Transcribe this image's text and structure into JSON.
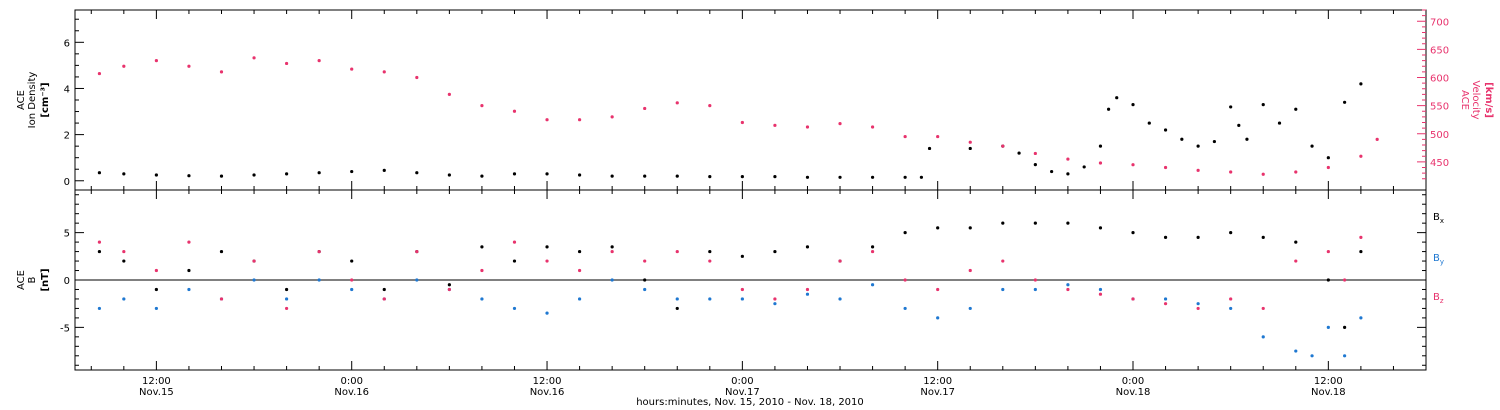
{
  "chart_data": [
    {
      "type": "scatter",
      "panel": "top",
      "ylabel_left": [
        "ACE",
        "Ion Density"
      ],
      "ylabel_left_unit": "[cm⁻³]",
      "ylabel_right": [
        "ACE",
        "Velocity"
      ],
      "ylabel_right_unit": "[km/s]",
      "left_axis": {
        "range": [
          -0.4,
          7.4
        ],
        "ticks": [
          0,
          2,
          4,
          6
        ],
        "tick_labels": [
          "0",
          "2",
          "4",
          "6"
        ]
      },
      "right_axis": {
        "range": [
          400,
          720
        ],
        "ticks": [
          450,
          500,
          550,
          600,
          650,
          700
        ],
        "tick_labels": [
          "450",
          "500",
          "550",
          "600",
          "650",
          "700"
        ],
        "color": "#e8336d"
      },
      "series": [
        {
          "axis": "left",
          "color": "#000000",
          "points": [
            [
              8.5,
              0.35
            ],
            [
              10,
              0.3
            ],
            [
              12,
              0.25
            ],
            [
              14,
              0.22
            ],
            [
              16,
              0.2
            ],
            [
              18,
              0.25
            ],
            [
              20,
              0.3
            ],
            [
              22,
              0.35
            ],
            [
              24,
              0.4
            ],
            [
              26,
              0.45
            ],
            [
              28,
              0.35
            ],
            [
              30,
              0.25
            ],
            [
              32,
              0.2
            ],
            [
              34,
              0.3
            ],
            [
              36,
              0.3
            ],
            [
              38,
              0.25
            ],
            [
              40,
              0.2
            ],
            [
              42,
              0.2
            ],
            [
              44,
              0.2
            ],
            [
              46,
              0.18
            ],
            [
              48,
              0.18
            ],
            [
              50,
              0.18
            ],
            [
              52,
              0.15
            ],
            [
              54,
              0.15
            ],
            [
              56,
              0.15
            ],
            [
              58,
              0.15
            ],
            [
              59,
              0.15
            ],
            [
              59.5,
              1.4
            ],
            [
              62,
              1.4
            ],
            [
              64,
              1.5
            ],
            [
              65,
              1.2
            ],
            [
              66,
              0.7
            ],
            [
              67,
              0.4
            ],
            [
              68,
              0.3
            ],
            [
              69,
              0.6
            ],
            [
              70,
              1.5
            ],
            [
              70.5,
              3.1
            ],
            [
              71,
              3.6
            ],
            [
              72,
              3.3
            ],
            [
              73,
              2.5
            ],
            [
              74,
              2.2
            ],
            [
              75,
              1.8
            ],
            [
              76,
              1.5
            ],
            [
              77,
              1.7
            ],
            [
              78,
              3.2
            ],
            [
              78.5,
              2.4
            ],
            [
              79,
              1.8
            ],
            [
              80,
              3.3
            ],
            [
              81,
              2.5
            ],
            [
              82,
              3.1
            ],
            [
              83,
              1.5
            ],
            [
              84,
              1.0
            ],
            [
              85,
              3.4
            ],
            [
              86,
              4.2
            ]
          ]
        },
        {
          "axis": "right",
          "color": "#e8336d",
          "points": [
            [
              8.5,
              607
            ],
            [
              10,
              620
            ],
            [
              12,
              630
            ],
            [
              14,
              620
            ],
            [
              16,
              610
            ],
            [
              18,
              635
            ],
            [
              20,
              625
            ],
            [
              22,
              630
            ],
            [
              24,
              615
            ],
            [
              26,
              610
            ],
            [
              28,
              600
            ],
            [
              30,
              570
            ],
            [
              32,
              550
            ],
            [
              34,
              540
            ],
            [
              36,
              525
            ],
            [
              38,
              525
            ],
            [
              40,
              530
            ],
            [
              42,
              545
            ],
            [
              44,
              555
            ],
            [
              46,
              550
            ],
            [
              48,
              520
            ],
            [
              50,
              515
            ],
            [
              52,
              512
            ],
            [
              54,
              518
            ],
            [
              56,
              512
            ],
            [
              58,
              495
            ],
            [
              60,
              495
            ],
            [
              62,
              485
            ],
            [
              64,
              478
            ],
            [
              66,
              465
            ],
            [
              68,
              455
            ],
            [
              70,
              448
            ],
            [
              72,
              445
            ],
            [
              74,
              440
            ],
            [
              76,
              435
            ],
            [
              78,
              432
            ],
            [
              80,
              428
            ],
            [
              82,
              432
            ],
            [
              84,
              440
            ],
            [
              86,
              460
            ],
            [
              87,
              490
            ]
          ]
        }
      ]
    },
    {
      "type": "scatter",
      "panel": "bottom",
      "ylabel_left": [
        "ACE",
        "B"
      ],
      "ylabel_left_unit": "[nT]",
      "left_axis": {
        "range": [
          -9.5,
          9.5
        ],
        "ticks": [
          -5,
          0,
          5
        ],
        "tick_labels": [
          "-5",
          "0",
          "5"
        ]
      },
      "zero_line": true,
      "x_axis": {
        "range": [
          7,
          90
        ],
        "major_ticks": [
          12,
          24,
          36,
          48,
          60,
          72,
          84
        ],
        "tick_labels": [
          {
            "time": "12:00",
            "date": "Nov.15"
          },
          {
            "time": "0:00",
            "date": "Nov.16"
          },
          {
            "time": "12:00",
            "date": "Nov.16"
          },
          {
            "time": "0:00",
            "date": "Nov.17"
          },
          {
            "time": "12:00",
            "date": "Nov.17"
          },
          {
            "time": "0:00",
            "date": "Nov.18"
          },
          {
            "time": "12:00",
            "date": "Nov.18"
          }
        ],
        "xlabel": "hours:minutes, Nov. 15, 2010 - Nov. 18, 2010"
      },
      "series": [
        {
          "name": "Bx",
          "color": "#000000",
          "points": [
            [
              8.5,
              3
            ],
            [
              10,
              2
            ],
            [
              12,
              -1
            ],
            [
              14,
              1
            ],
            [
              16,
              3
            ],
            [
              18,
              2
            ],
            [
              20,
              -1
            ],
            [
              22,
              3
            ],
            [
              24,
              2
            ],
            [
              26,
              -1
            ],
            [
              28,
              3
            ],
            [
              30,
              -0.5
            ],
            [
              32,
              3.5
            ],
            [
              34,
              2
            ],
            [
              36,
              3.5
            ],
            [
              38,
              3
            ],
            [
              40,
              3.5
            ],
            [
              42,
              0
            ],
            [
              44,
              -3
            ],
            [
              46,
              3
            ],
            [
              48,
              2.5
            ],
            [
              50,
              3
            ],
            [
              52,
              3.5
            ],
            [
              54,
              2
            ],
            [
              56,
              3.5
            ],
            [
              58,
              5
            ],
            [
              60,
              5.5
            ],
            [
              62,
              5.5
            ],
            [
              64,
              6
            ],
            [
              66,
              6
            ],
            [
              68,
              6
            ],
            [
              70,
              5.5
            ],
            [
              72,
              5
            ],
            [
              74,
              4.5
            ],
            [
              76,
              4.5
            ],
            [
              78,
              5
            ],
            [
              80,
              4.5
            ],
            [
              82,
              4
            ],
            [
              84,
              0
            ],
            [
              85,
              -5
            ],
            [
              86,
              3
            ]
          ]
        },
        {
          "name": "By",
          "color": "#1f78d1",
          "points": [
            [
              8.5,
              -3
            ],
            [
              10,
              -2
            ],
            [
              12,
              -3
            ],
            [
              14,
              -1
            ],
            [
              16,
              -2
            ],
            [
              18,
              0
            ],
            [
              20,
              -2
            ],
            [
              22,
              0
            ],
            [
              24,
              -1
            ],
            [
              26,
              -2
            ],
            [
              28,
              0
            ],
            [
              30,
              -1
            ],
            [
              32,
              -2
            ],
            [
              34,
              -3
            ],
            [
              36,
              -3.5
            ],
            [
              38,
              -2
            ],
            [
              40,
              0
            ],
            [
              42,
              -1
            ],
            [
              44,
              -2
            ],
            [
              46,
              -2
            ],
            [
              48,
              -2
            ],
            [
              50,
              -2.5
            ],
            [
              52,
              -1.5
            ],
            [
              54,
              -2
            ],
            [
              56,
              -0.5
            ],
            [
              58,
              -3
            ],
            [
              60,
              -4
            ],
            [
              62,
              -3
            ],
            [
              64,
              -1
            ],
            [
              66,
              -1
            ],
            [
              68,
              -0.5
            ],
            [
              70,
              -1
            ],
            [
              72,
              -2
            ],
            [
              74,
              -2
            ],
            [
              76,
              -2.5
            ],
            [
              78,
              -3
            ],
            [
              80,
              -6
            ],
            [
              82,
              -7.5
            ],
            [
              83,
              -8
            ],
            [
              84,
              -5
            ],
            [
              85,
              -8
            ],
            [
              86,
              -4
            ]
          ]
        },
        {
          "name": "Bz",
          "color": "#e8336d",
          "points": [
            [
              8.5,
              4
            ],
            [
              10,
              3
            ],
            [
              12,
              1
            ],
            [
              14,
              4
            ],
            [
              16,
              -2
            ],
            [
              18,
              2
            ],
            [
              20,
              -3
            ],
            [
              22,
              3
            ],
            [
              24,
              0
            ],
            [
              26,
              -2
            ],
            [
              28,
              3
            ],
            [
              30,
              -1
            ],
            [
              32,
              1
            ],
            [
              34,
              4
            ],
            [
              36,
              2
            ],
            [
              38,
              1
            ],
            [
              40,
              3
            ],
            [
              42,
              2
            ],
            [
              44,
              3
            ],
            [
              46,
              2
            ],
            [
              48,
              -1
            ],
            [
              50,
              -2
            ],
            [
              52,
              -1
            ],
            [
              54,
              2
            ],
            [
              56,
              3
            ],
            [
              58,
              0
            ],
            [
              60,
              -1
            ],
            [
              62,
              1
            ],
            [
              64,
              2
            ],
            [
              66,
              0
            ],
            [
              68,
              -1
            ],
            [
              70,
              -1.5
            ],
            [
              72,
              -2
            ],
            [
              74,
              -2.5
            ],
            [
              76,
              -3
            ],
            [
              78,
              -2
            ],
            [
              80,
              -3
            ],
            [
              82,
              2
            ],
            [
              84,
              3
            ],
            [
              85,
              0
            ],
            [
              86,
              4.5
            ]
          ]
        }
      ],
      "legend": [
        {
          "label": "B",
          "sub": "x",
          "color": "#000000"
        },
        {
          "label": "B",
          "sub": "y",
          "color": "#1f78d1"
        },
        {
          "label": "B",
          "sub": "z",
          "color": "#e8336d"
        }
      ]
    }
  ]
}
